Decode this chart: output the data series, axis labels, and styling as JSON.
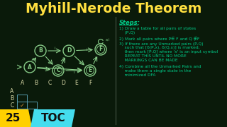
{
  "title": "Myhill-Nerode Theorem",
  "title_color": "#FFE040",
  "bg_color": "#0a1a0a",
  "steps_title": "Steps:",
  "step1": "1) Draw a table for all pairs of states\n    (P,Q)",
  "step2": "2) Mark all pairs where P∈ F and Q ∉F",
  "step3": "3) If there are any Unmarked pairs (P,Q)\n    such that [δ(P,x), δ(Q,x)] is marked,\n    then mark [P,Q] where 'x' is an input symbol\n    REPEAT THIS UNTIL NO MORE\n    MARKINGS CAN BE MADE",
  "step4": "4) Combine all the Unmarked Pairs and\n    make them a single state in the\n    minimized DFA",
  "states": [
    "A",
    "B",
    "C",
    "D",
    "E",
    "F"
  ],
  "table_rows": [
    "A",
    "B",
    "C"
  ],
  "table_cols": [
    "A",
    "B",
    "C",
    "D",
    "E",
    "F"
  ],
  "badge_number": "25",
  "badge_text": "TOC",
  "node_color": "#88CC88",
  "steps_color": "#00CC88",
  "label_color": "#DDDDAA",
  "divider_color": "#445544",
  "badge_yellow": "#FFD000",
  "badge_cyan": "#44DDEE",
  "badge_text_color": "#111111",
  "table_edge_color": "#5599AA",
  "check_color": "#CC8833"
}
